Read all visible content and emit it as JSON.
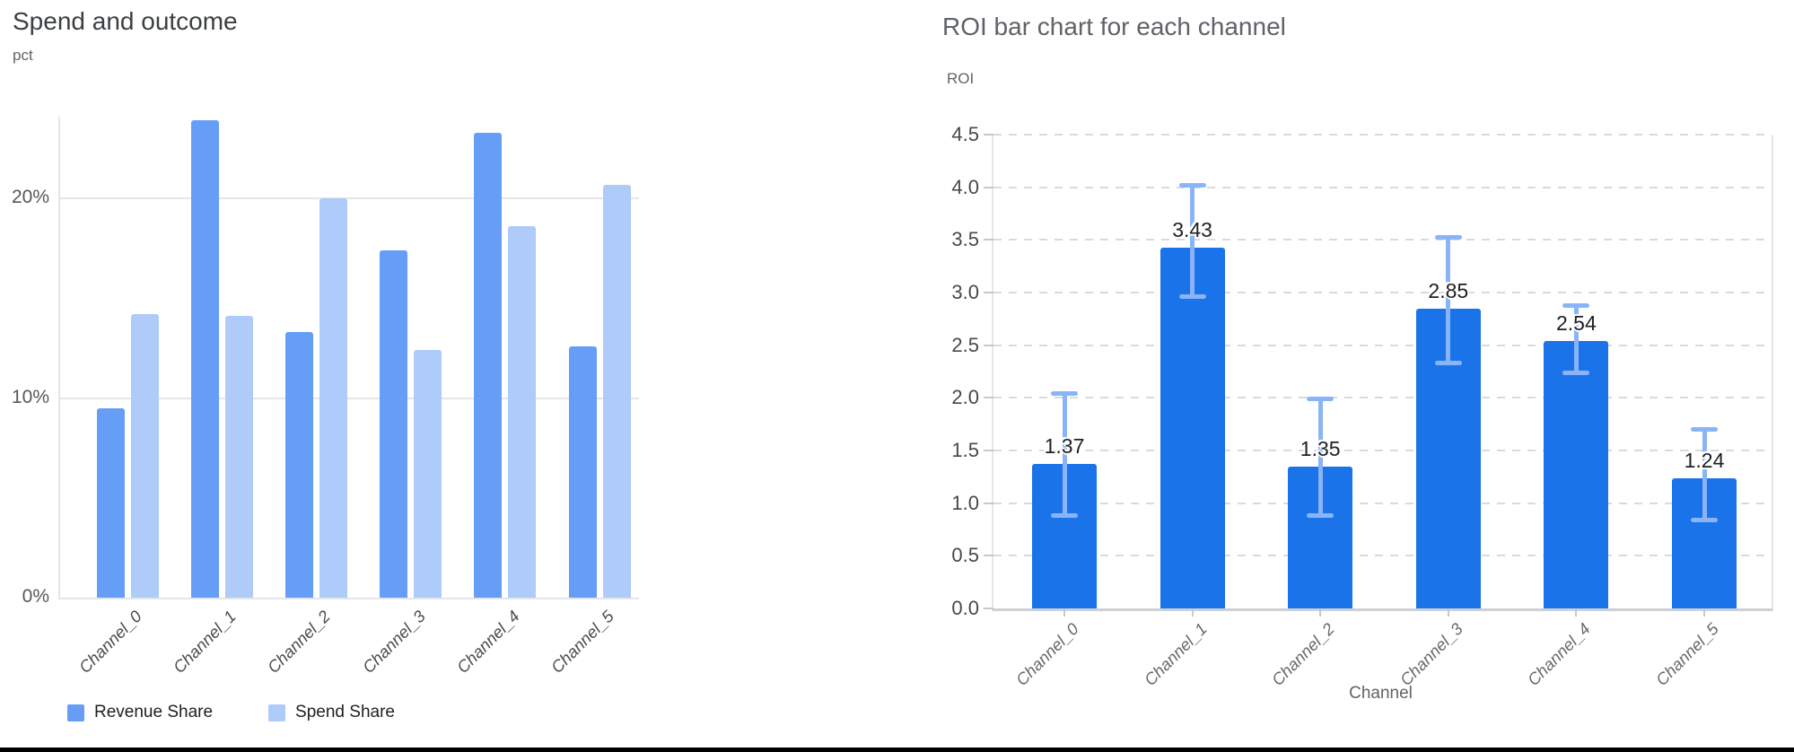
{
  "chart_data": [
    {
      "type": "bar",
      "title": "Spend and outcome",
      "ylabel": "pct",
      "categories": [
        "Channel_0",
        "Channel_1",
        "Channel_2",
        "Channel_3",
        "Channel_4",
        "Channel_5"
      ],
      "series": [
        {
          "name": "Revenue Share",
          "color": "#669df6",
          "values": [
            9.5,
            23.9,
            13.3,
            17.4,
            23.3,
            12.6
          ]
        },
        {
          "name": "Spend Share",
          "color": "#aecbfa",
          "values": [
            14.2,
            14.1,
            20.0,
            12.4,
            18.6,
            20.7
          ]
        }
      ],
      "ylim": [
        0,
        24.1
      ],
      "yticks": [
        {
          "v": 0,
          "label": "0%"
        },
        {
          "v": 10,
          "label": "10%"
        },
        {
          "v": 20,
          "label": "20%"
        }
      ],
      "grid": "solid",
      "legend_position": "bottom"
    },
    {
      "type": "bar",
      "title": "ROI bar chart for each channel",
      "ylabel": "ROI",
      "xlabel": "Channel",
      "categories": [
        "Channel_0",
        "Channel_1",
        "Channel_2",
        "Channel_3",
        "Channel_4",
        "Channel_5"
      ],
      "series": [
        {
          "name": "ROI",
          "color": "#1a73e8",
          "values": [
            1.37,
            3.43,
            1.35,
            2.85,
            2.54,
            1.24
          ]
        }
      ],
      "bar_labels": [
        "1.37",
        "3.43",
        "1.35",
        "2.85",
        "2.54",
        "1.24"
      ],
      "error_bars": {
        "color": "#8ab4f8",
        "low": [
          0.88,
          2.96,
          0.88,
          2.33,
          2.24,
          0.84
        ],
        "high": [
          2.04,
          4.02,
          1.99,
          3.52,
          2.88,
          1.7
        ]
      },
      "ylim": [
        0,
        4.5
      ],
      "yticks": [
        {
          "v": 0.0,
          "label": "0.0"
        },
        {
          "v": 0.5,
          "label": "0.5"
        },
        {
          "v": 1.0,
          "label": "1.0"
        },
        {
          "v": 1.5,
          "label": "1.5"
        },
        {
          "v": 2.0,
          "label": "2.0"
        },
        {
          "v": 2.5,
          "label": "2.5"
        },
        {
          "v": 3.0,
          "label": "3.0"
        },
        {
          "v": 3.5,
          "label": "3.5"
        },
        {
          "v": 4.0,
          "label": "4.0"
        },
        {
          "v": 4.5,
          "label": "4.5"
        }
      ],
      "grid": "dashed",
      "legend_position": "none"
    }
  ]
}
